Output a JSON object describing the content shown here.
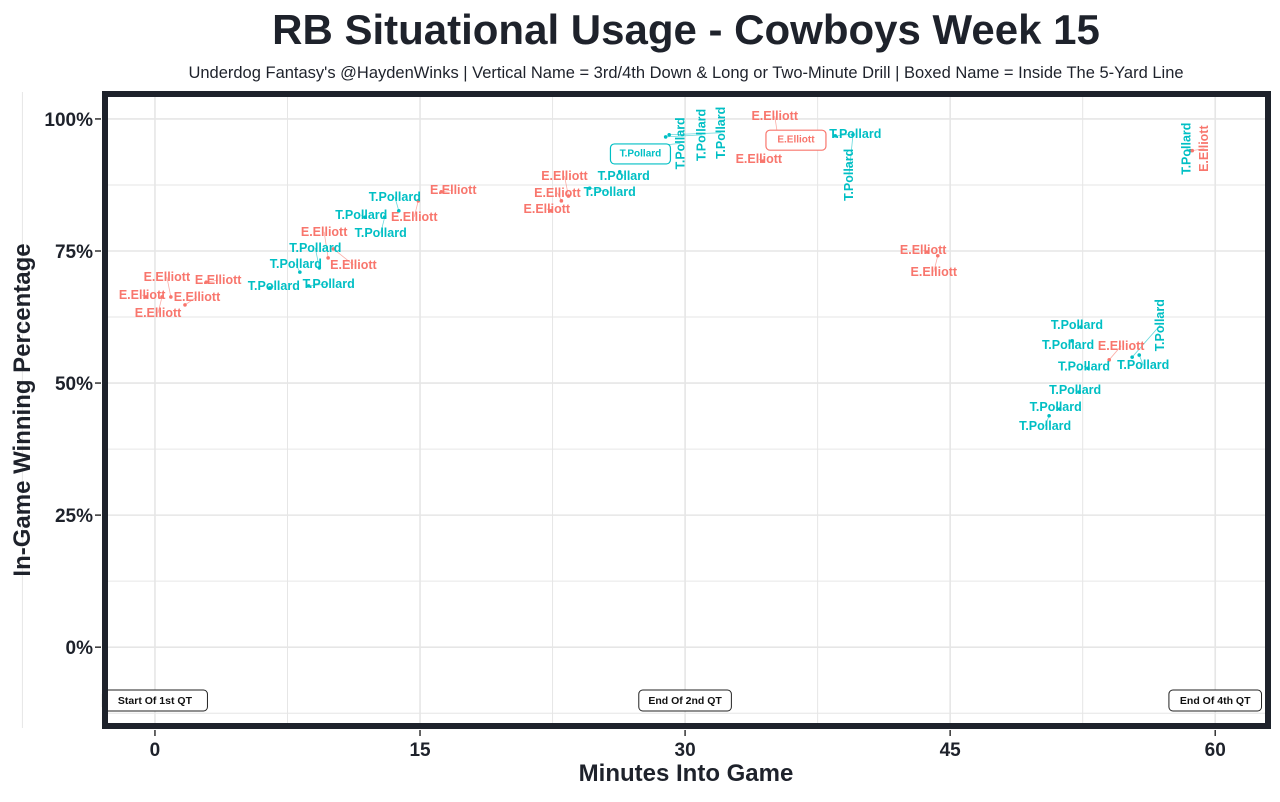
{
  "chart_data": {
    "type": "scatter",
    "title": "RB Situational Usage - Cowboys Week 15",
    "subtitle": "Underdog Fantasy's @HaydenWinks | Vertical Name = 3rd/4th Down & Long or Two-Minute Drill | Boxed Name = Inside The 5-Yard Line",
    "xlabel": "Minutes Into Game",
    "ylabel": "In-Game Winning Percentage",
    "xlim": [
      -2.94,
      63.1
    ],
    "ylim": [
      -15.3,
      105.1
    ],
    "x_ticks": [
      0,
      15,
      30,
      45,
      60
    ],
    "x_tick_labels": [
      "0",
      "15",
      "30",
      "45",
      "60"
    ],
    "y_ticks": [
      0,
      25,
      50,
      75,
      100
    ],
    "y_tick_labels": [
      "0%",
      "25%",
      "50%",
      "75%",
      "100%"
    ],
    "grid": true,
    "series_colors": {
      "E.Elliott": "#F8766D",
      "T.Pollard": "#00BFC4"
    },
    "annotations": [
      {
        "text": "Start Of 1st QT",
        "x": 0,
        "y": -10
      },
      {
        "text": "End Of 2nd QT",
        "x": 30,
        "y": -10
      },
      {
        "text": "End Of 4th QT",
        "x": 60,
        "y": -10
      }
    ],
    "points": [
      {
        "name": "E.Elliott",
        "x": -0.5,
        "y": 66.3,
        "vertical": false,
        "boxed": false
      },
      {
        "name": "E.Elliott",
        "x": 0.4,
        "y": 66.3,
        "vertical": false,
        "boxed": false
      },
      {
        "name": "E.Elliott",
        "x": 0.9,
        "y": 66.3,
        "vertical": false,
        "boxed": false
      },
      {
        "name": "E.Elliott",
        "x": 1.7,
        "y": 64.8,
        "vertical": false,
        "boxed": false
      },
      {
        "name": "E.Elliott",
        "x": 2.9,
        "y": 69.1,
        "vertical": false,
        "boxed": false
      },
      {
        "name": "T.Pollard",
        "x": 6.5,
        "y": 68.0,
        "vertical": false,
        "boxed": false
      },
      {
        "name": "T.Pollard",
        "x": 8.7,
        "y": 68.4,
        "vertical": false,
        "boxed": false
      },
      {
        "name": "T.Pollard",
        "x": 8.2,
        "y": 71.0,
        "vertical": false,
        "boxed": false
      },
      {
        "name": "T.Pollard",
        "x": 9.3,
        "y": 71.8,
        "vertical": false,
        "boxed": false
      },
      {
        "name": "E.Elliott",
        "x": 9.8,
        "y": 73.7,
        "vertical": false,
        "boxed": false
      },
      {
        "name": "E.Elliott",
        "x": 10.1,
        "y": 75.4,
        "vertical": false,
        "boxed": false
      },
      {
        "name": "T.Pollard",
        "x": 11.9,
        "y": 81.4,
        "vertical": false,
        "boxed": false
      },
      {
        "name": "T.Pollard",
        "x": 13.0,
        "y": 81.4,
        "vertical": false,
        "boxed": false
      },
      {
        "name": "T.Pollard",
        "x": 13.8,
        "y": 82.6,
        "vertical": false,
        "boxed": false
      },
      {
        "name": "E.Elliott",
        "x": 14.9,
        "y": 84.5,
        "vertical": false,
        "boxed": false
      },
      {
        "name": "E.Elliott",
        "x": 16.2,
        "y": 86.2,
        "vertical": false,
        "boxed": false
      },
      {
        "name": "E.Elliott",
        "x": 22.4,
        "y": 82.6,
        "vertical": false,
        "boxed": false
      },
      {
        "name": "E.Elliott",
        "x": 23.0,
        "y": 84.5,
        "vertical": false,
        "boxed": false
      },
      {
        "name": "E.Elliott",
        "x": 23.4,
        "y": 85.4,
        "vertical": false,
        "boxed": false
      },
      {
        "name": "T.Pollard",
        "x": 24.6,
        "y": 86.9,
        "vertical": false,
        "boxed": false
      },
      {
        "name": "T.Pollard",
        "x": 26.3,
        "y": 90.0,
        "vertical": false,
        "boxed": false
      },
      {
        "name": "T.Pollard",
        "x": 27.7,
        "y": 93.0,
        "vertical": false,
        "boxed": true
      },
      {
        "name": "T.Pollard",
        "x": 28.6,
        "y": 95.0,
        "vertical": true,
        "boxed": false
      },
      {
        "name": "T.Pollard",
        "x": 28.9,
        "y": 96.6,
        "vertical": true,
        "boxed": false
      },
      {
        "name": "T.Pollard",
        "x": 29.1,
        "y": 97.0,
        "vertical": true,
        "boxed": false
      },
      {
        "name": "E.Elliott",
        "x": 34.4,
        "y": 92.0,
        "vertical": false,
        "boxed": false
      },
      {
        "name": "E.Elliott",
        "x": 35.3,
        "y": 95.6,
        "vertical": false,
        "boxed": false
      },
      {
        "name": "T.Pollard",
        "x": 38.5,
        "y": 96.8,
        "vertical": false,
        "boxed": false
      },
      {
        "name": "E.Elliott",
        "x": 36.5,
        "y": 95.6,
        "vertical": false,
        "boxed": true
      },
      {
        "name": "T.Pollard",
        "x": 39.5,
        "y": 97.0,
        "vertical": true,
        "boxed": false
      },
      {
        "name": "E.Elliott",
        "x": 43.7,
        "y": 74.8,
        "vertical": false,
        "boxed": false
      },
      {
        "name": "E.Elliott",
        "x": 44.3,
        "y": 74.1,
        "vertical": false,
        "boxed": false
      },
      {
        "name": "T.Pollard",
        "x": 52.4,
        "y": 60.6,
        "vertical": false,
        "boxed": false
      },
      {
        "name": "T.Pollard",
        "x": 51.9,
        "y": 58.0,
        "vertical": false,
        "boxed": false
      },
      {
        "name": "T.Pollard",
        "x": 52.8,
        "y": 52.8,
        "vertical": false,
        "boxed": false
      },
      {
        "name": "E.Elliott",
        "x": 54.0,
        "y": 54.4,
        "vertical": false,
        "boxed": false
      },
      {
        "name": "T.Pollard",
        "x": 55.7,
        "y": 55.3,
        "vertical": false,
        "boxed": false
      },
      {
        "name": "T.Pollard",
        "x": 55.3,
        "y": 54.9,
        "vertical": true,
        "boxed": false
      },
      {
        "name": "T.Pollard",
        "x": 52.3,
        "y": 48.3,
        "vertical": false,
        "boxed": false
      },
      {
        "name": "T.Pollard",
        "x": 51.2,
        "y": 45.1,
        "vertical": false,
        "boxed": false
      },
      {
        "name": "T.Pollard",
        "x": 50.6,
        "y": 43.8,
        "vertical": false,
        "boxed": false
      },
      {
        "name": "T.Pollard",
        "x": 58.6,
        "y": 94.0,
        "vertical": true,
        "boxed": false
      },
      {
        "name": "E.Elliott",
        "x": 58.7,
        "y": 94.0,
        "vertical": true,
        "boxed": false
      }
    ]
  }
}
